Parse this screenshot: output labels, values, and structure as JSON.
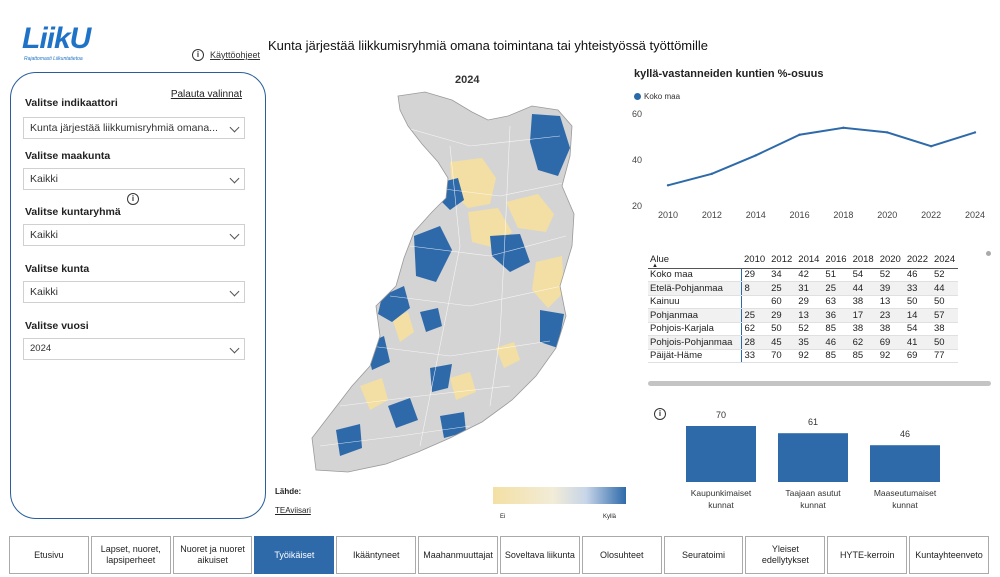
{
  "logo": {
    "word": "LiikU",
    "sub": "Rajattomasti Liikuntatietoa"
  },
  "help": {
    "label": "Käyttöohjeet"
  },
  "page_title": "Kunta järjestää liikkumisryhmiä omana toimintana tai yhteistyössä työttömille",
  "filters": {
    "reset_label": "Palauta valinnat",
    "indicator": {
      "label": "Valitse indikaattori",
      "value": "Kunta järjestää liikkumisryhmiä omana..."
    },
    "region": {
      "label": "Valitse maakunta",
      "value": "Kaikki"
    },
    "group": {
      "label": "Valitse kuntaryhmä",
      "value": "Kaikki"
    },
    "municipality": {
      "label": "Valitse kunta",
      "value": "Kaikki"
    },
    "year": {
      "label": "Valitse vuosi",
      "value": "2024"
    }
  },
  "map": {
    "year": "2024",
    "source_label": "Lähde:",
    "source_link": "TEAviisari",
    "legend_min": "Ei",
    "legend_max": "Kyllä"
  },
  "colors": {
    "accent": "#2e6aaa",
    "yes": "#2e6aaa",
    "no": "#f3dfa3",
    "none": "#d4d4d4"
  },
  "line_chart": {
    "title": "kyllä-vastanneiden kuntien %-osuus",
    "legend": "Koko maa"
  },
  "table": {
    "headers": [
      "Alue",
      "2010",
      "2012",
      "2014",
      "2016",
      "2018",
      "2020",
      "2022",
      "2024"
    ],
    "rows": [
      [
        "Koko maa",
        "29",
        "34",
        "42",
        "51",
        "54",
        "52",
        "46",
        "52"
      ],
      [
        "Etelä-Pohjanmaa",
        "8",
        "25",
        "31",
        "25",
        "44",
        "39",
        "33",
        "44"
      ],
      [
        "Kainuu",
        "",
        "60",
        "29",
        "63",
        "38",
        "13",
        "50",
        "50"
      ],
      [
        "Pohjanmaa",
        "25",
        "29",
        "13",
        "36",
        "17",
        "23",
        "14",
        "57"
      ],
      [
        "Pohjois-Karjala",
        "62",
        "50",
        "52",
        "85",
        "38",
        "38",
        "54",
        "38"
      ],
      [
        "Pohjois-Pohjanmaa",
        "28",
        "45",
        "35",
        "46",
        "62",
        "69",
        "41",
        "50"
      ],
      [
        "Päijät-Häme",
        "33",
        "70",
        "92",
        "85",
        "85",
        "92",
        "69",
        "77"
      ]
    ]
  },
  "chart_data": [
    {
      "type": "line",
      "title": "kyllä-vastanneiden kuntien %-osuus",
      "series": [
        {
          "name": "Koko maa",
          "values": [
            29,
            34,
            42,
            51,
            54,
            52,
            46,
            52
          ]
        }
      ],
      "x": [
        "2010",
        "2012",
        "2014",
        "2016",
        "2018",
        "2020",
        "2022",
        "2024"
      ],
      "yticks": [
        20,
        40,
        60
      ],
      "ylim": [
        20,
        60
      ],
      "grid": false,
      "legend": "top-left"
    },
    {
      "type": "bar",
      "categories": [
        "Kaupunkimaiset kunnat",
        "Taajaan asutut kunnat",
        "Maaseutumaiset kunnat"
      ],
      "category_lines": [
        [
          "Kaupunkimaiset",
          "kunnat"
        ],
        [
          "Taajaan asutut",
          "kunnat"
        ],
        [
          "Maaseutumaiset",
          "kunnat"
        ]
      ],
      "values": [
        70,
        61,
        46
      ],
      "ylim": [
        0,
        70
      ]
    }
  ],
  "nav": [
    {
      "label": "Etusivu",
      "active": false
    },
    {
      "label": "Lapset, nuoret, lapsiperheet",
      "active": false
    },
    {
      "label": "Nuoret ja nuoret aikuiset",
      "active": false
    },
    {
      "label": "Työikäiset",
      "active": true
    },
    {
      "label": "Ikääntyneet",
      "active": false
    },
    {
      "label": "Maahanmuuttajat",
      "active": false
    },
    {
      "label": "Soveltava liikunta",
      "active": false
    },
    {
      "label": "Olosuhteet",
      "active": false
    },
    {
      "label": "Seuratoimi",
      "active": false
    },
    {
      "label": "Yleiset edellytykset",
      "active": false
    },
    {
      "label": "HYTE-kerroin",
      "active": false
    },
    {
      "label": "Kuntayhteenveto",
      "active": false
    }
  ]
}
